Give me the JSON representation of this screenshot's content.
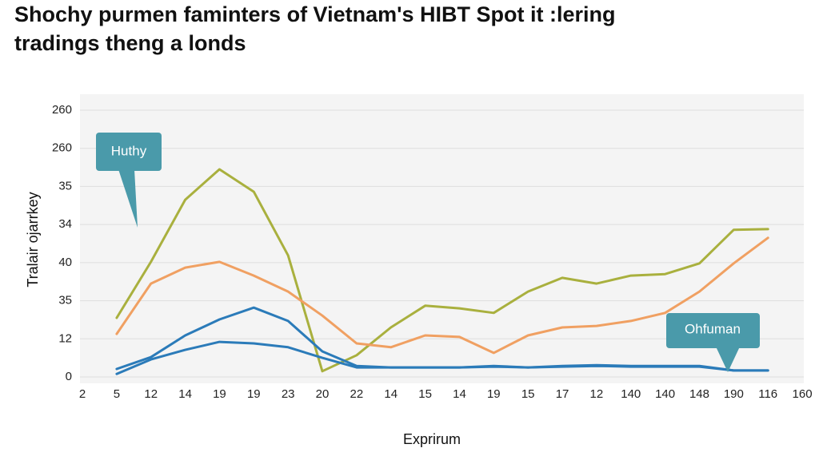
{
  "chart_data": {
    "type": "line",
    "title": [
      "Shochy purmen faminters of Vietnam's HIBT Spot it :lering",
      "tradings theng a londs"
    ],
    "x_label": "Exprirum",
    "y_label": "Tralair ojarrkey",
    "categories": [
      "2",
      "5",
      "12",
      "14",
      "19",
      "19",
      "23",
      "20",
      "22",
      "14",
      "15",
      "14",
      "19",
      "15",
      "17",
      "12",
      "140",
      "140",
      "148",
      "190",
      "116",
      "160"
    ],
    "ylim": [
      0,
      7
    ],
    "yticks": [
      {
        "value": 0,
        "label": "0"
      },
      {
        "value": 1,
        "label": "12"
      },
      {
        "value": 2,
        "label": "35"
      },
      {
        "value": 3,
        "label": "40"
      },
      {
        "value": 4,
        "label": "34"
      },
      {
        "value": 5,
        "label": "35"
      },
      {
        "value": 6,
        "label": "260"
      },
      {
        "value": 7,
        "label": "260"
      }
    ],
    "grid": true,
    "series": [
      {
        "color": "#a9b03e",
        "values": [
          null,
          1.55,
          3.02,
          4.65,
          5.45,
          4.86,
          3.19,
          0.15,
          0.57,
          1.3,
          1.87,
          1.8,
          1.68,
          2.24,
          2.6,
          2.45,
          2.66,
          2.7,
          2.98,
          3.86,
          3.88,
          null
        ]
      },
      {
        "color": "#f0a062",
        "values": [
          null,
          1.13,
          2.45,
          2.87,
          3.02,
          2.66,
          2.24,
          1.61,
          0.88,
          0.78,
          1.09,
          1.05,
          0.63,
          1.09,
          1.3,
          1.34,
          1.47,
          1.68,
          2.24,
          2.98,
          3.65,
          null
        ]
      },
      {
        "color": "#2b7bb9",
        "values": [
          null,
          0.21,
          0.52,
          1.09,
          1.51,
          1.82,
          1.47,
          0.67,
          0.29,
          0.25,
          0.25,
          0.25,
          0.29,
          0.25,
          0.29,
          0.31,
          0.29,
          0.29,
          0.29,
          0.17,
          0.17,
          null
        ]
      },
      {
        "color": "#2b7bb9",
        "values": [
          null,
          0.08,
          0.46,
          0.71,
          0.92,
          0.88,
          0.78,
          0.5,
          0.25,
          0.25,
          0.25,
          0.25,
          0.27,
          0.25,
          0.27,
          0.29,
          0.27,
          0.27,
          0.27,
          0.17,
          0.17,
          null
        ]
      }
    ],
    "annotations": [
      {
        "text": "Huthy"
      },
      {
        "text": "Ohfuman"
      }
    ]
  }
}
